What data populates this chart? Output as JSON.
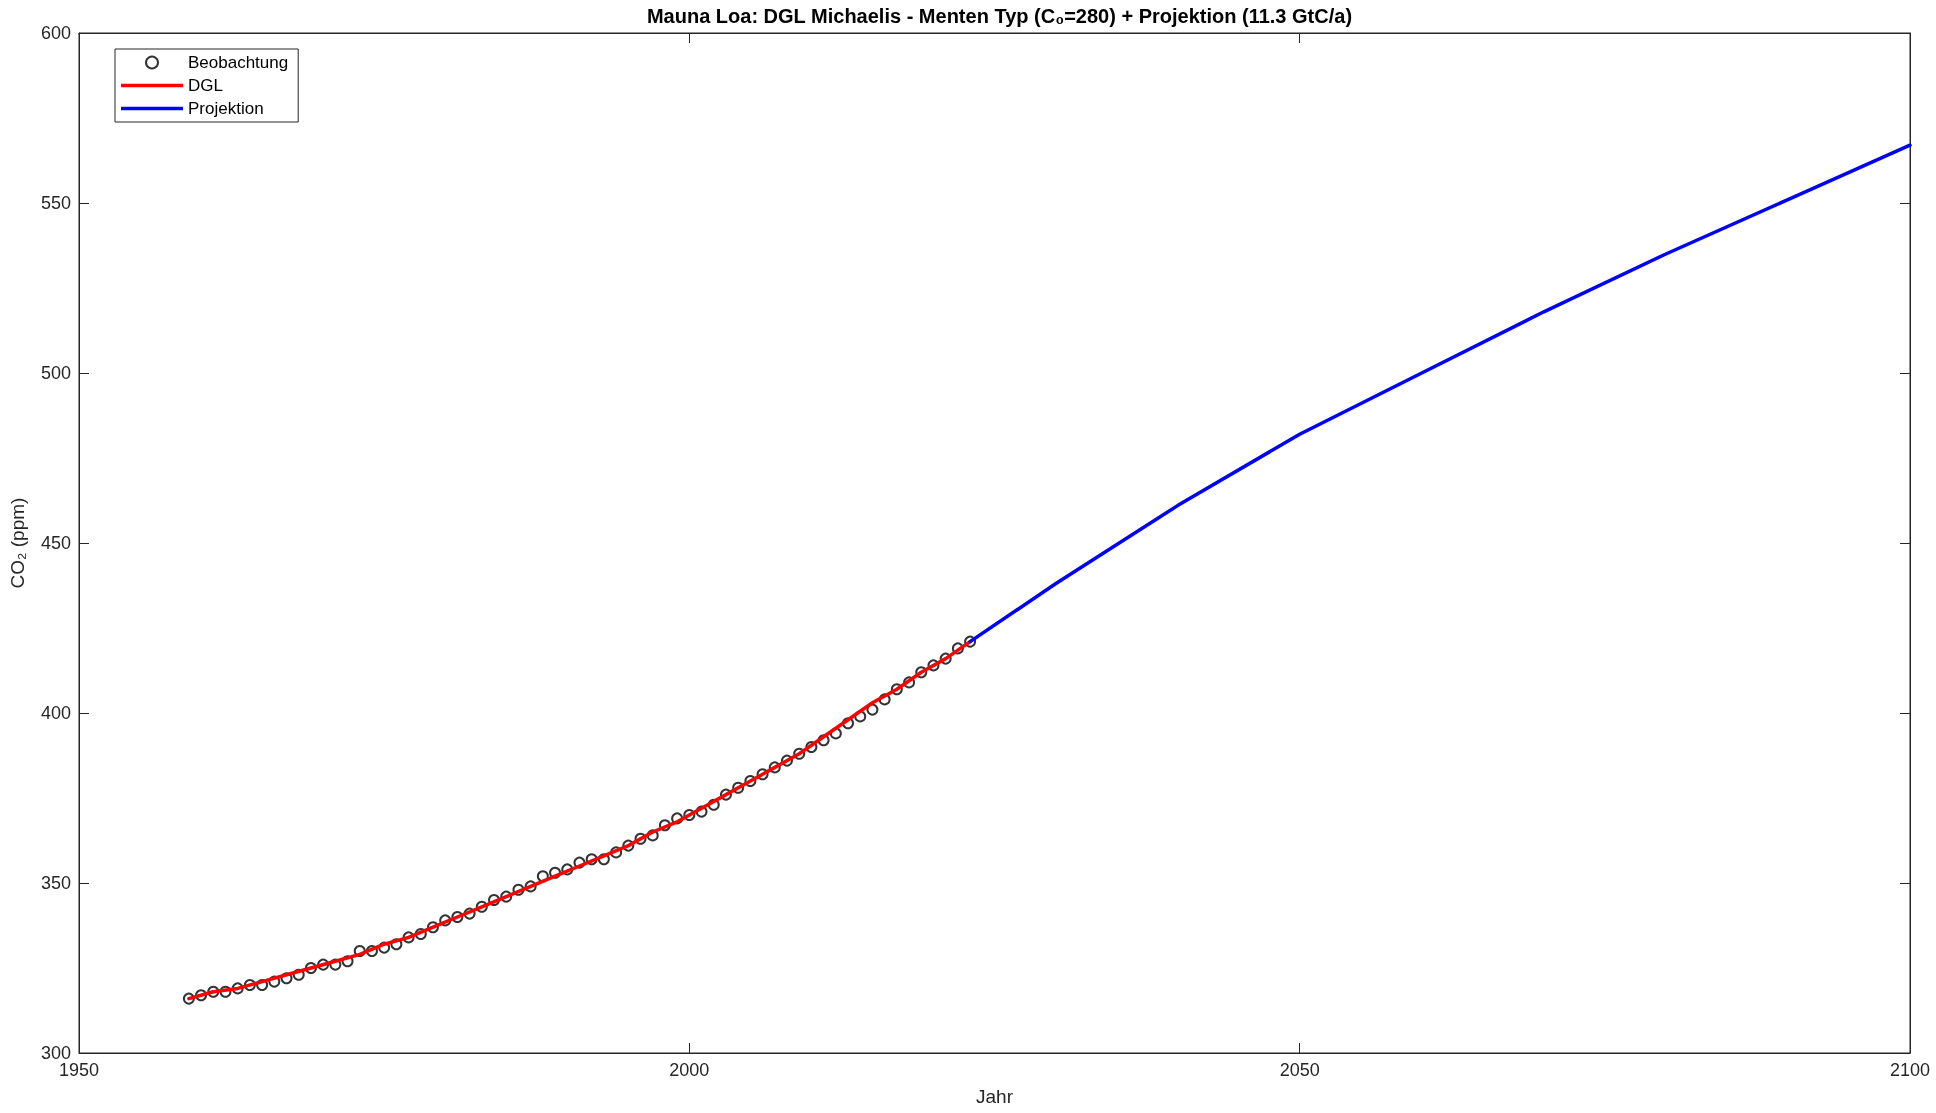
{
  "chart_data": {
    "type": "line",
    "title": "Mauna Loa: DGL Michaelis - Menten Typ (C₀=280) + Projektion (11.3 GtC/a)",
    "xlabel": "Jahr",
    "ylabel": "CO₂ (ppm)",
    "xlim": [
      1950,
      2100
    ],
    "xticks": [
      1950,
      2000,
      2050,
      2100
    ],
    "ylim": [
      300,
      600
    ],
    "yticks": [
      300,
      350,
      400,
      450,
      500,
      550,
      600
    ],
    "grid": false,
    "legend": "top left",
    "series": [
      {
        "name": "Beobachtung",
        "type": "scatter",
        "marker": "circle",
        "color": "#000000",
        "x": [
          1959,
          1960,
          1961,
          1962,
          1963,
          1964,
          1965,
          1966,
          1967,
          1968,
          1969,
          1970,
          1971,
          1972,
          1973,
          1974,
          1975,
          1976,
          1977,
          1978,
          1979,
          1980,
          1981,
          1982,
          1983,
          1984,
          1985,
          1986,
          1987,
          1988,
          1989,
          1990,
          1991,
          1992,
          1993,
          1994,
          1995,
          1996,
          1997,
          1998,
          1999,
          2000,
          2001,
          2002,
          2003,
          2004,
          2005,
          2006,
          2007,
          2008,
          2009,
          2010,
          2011,
          2012,
          2013,
          2014,
          2015,
          2016,
          2017,
          2018,
          2019,
          2020,
          2021,
          2022,
          2023
        ],
        "values": [
          316,
          317,
          318,
          318,
          319,
          320,
          320,
          321,
          322,
          323,
          325,
          326,
          326,
          327,
          330,
          330,
          331,
          332,
          334,
          335,
          337,
          339,
          340,
          341,
          343,
          345,
          346,
          348,
          349,
          352,
          353,
          354,
          356,
          357,
          357,
          359,
          361,
          363,
          364,
          367,
          369,
          370,
          371,
          373,
          376,
          378,
          380,
          382,
          384,
          386,
          388,
          390,
          392,
          394,
          397,
          399,
          401,
          404,
          407,
          409,
          412,
          414,
          416,
          419,
          421
        ]
      },
      {
        "name": "DGL",
        "marker": "none",
        "line_style": "solid",
        "color": "#ff0000",
        "x": [
          1959,
          1961,
          1963,
          1965,
          1967,
          1969,
          1971,
          1973,
          1975,
          1977,
          1979,
          1981,
          1983,
          1985,
          1987,
          1989,
          1991,
          1993,
          1995,
          1997,
          1999,
          2001,
          2003,
          2005,
          2007,
          2009,
          2011,
          2013,
          2015,
          2017,
          2019,
          2021,
          2023
        ],
        "values": [
          316,
          318,
          319,
          321,
          323,
          325,
          327,
          329,
          332,
          334,
          337,
          340,
          343,
          346,
          349,
          352,
          355,
          358,
          361,
          365,
          368,
          372,
          376,
          380,
          384,
          388,
          393,
          398,
          403,
          407,
          412,
          416,
          421
        ]
      },
      {
        "name": "Projektion",
        "marker": "none",
        "line_style": "solid",
        "color": "#0000ff",
        "x": [
          2023,
          2030,
          2040,
          2050,
          2060,
          2070,
          2080,
          2090,
          2100
        ],
        "values": [
          421,
          438,
          461,
          482,
          500,
          518,
          535,
          551,
          567
        ]
      }
    ]
  }
}
